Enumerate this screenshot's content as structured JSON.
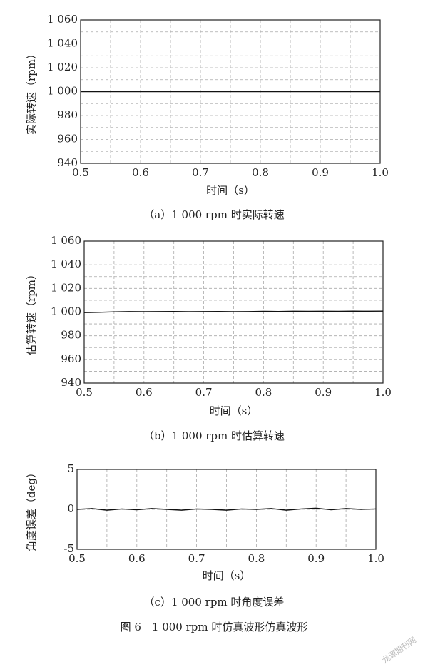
{
  "chart_data": [
    {
      "type": "line",
      "caption": "（a）1 000 rpm 时实际转速",
      "xlabel": "时间（s）",
      "ylabel": "实际转速（rpm）",
      "xlim": [
        0.5,
        1.0
      ],
      "ylim": [
        940,
        1060
      ],
      "xticks": [
        0.5,
        0.6,
        0.7,
        0.8,
        0.9,
        {
          "value": 1.0,
          "label": "1.0"
        }
      ],
      "yticks": [
        940,
        960,
        980,
        {
          "value": 1000,
          "label": "1 000"
        },
        {
          "value": 1020,
          "label": "1 020"
        },
        {
          "value": 1040,
          "label": "1 040"
        },
        {
          "value": 1060,
          "label": "1 060"
        }
      ],
      "xminorticks": [
        0.55,
        0.65,
        0.75,
        0.85,
        0.95
      ],
      "yminorticks": [
        950,
        970,
        990,
        1010,
        1030,
        1050
      ],
      "grid": true,
      "x": [
        0.5,
        0.55,
        0.6,
        0.65,
        0.7,
        0.75,
        0.8,
        0.85,
        0.9,
        0.95,
        1.0
      ],
      "series": [
        {
          "color": "#111111",
          "values": [
            1000,
            1000,
            1000,
            1000,
            1000,
            1000,
            1000,
            1000,
            1000,
            1000,
            1000
          ]
        }
      ]
    },
    {
      "type": "line",
      "caption": "（b）1 000 rpm 时估算转速",
      "xlabel": "时间（s）",
      "ylabel": "估算转速（rpm）",
      "xlim": [
        0.5,
        1.0
      ],
      "ylim": [
        940,
        1060
      ],
      "xticks": [
        0.5,
        0.6,
        0.7,
        0.8,
        0.9,
        {
          "value": 1.0,
          "label": "1.0"
        }
      ],
      "yticks": [
        940,
        960,
        980,
        {
          "value": 1000,
          "label": "1 000"
        },
        {
          "value": 1020,
          "label": "1 020"
        },
        {
          "value": 1040,
          "label": "1 040"
        },
        {
          "value": 1060,
          "label": "1 060"
        }
      ],
      "xminorticks": [
        0.55,
        0.65,
        0.75,
        0.85,
        0.95
      ],
      "yminorticks": [
        950,
        970,
        990,
        1010,
        1030,
        1050
      ],
      "grid": true,
      "x": [
        0.5,
        0.525,
        0.55,
        0.575,
        0.6,
        0.625,
        0.65,
        0.675,
        0.7,
        0.725,
        0.75,
        0.775,
        0.8,
        0.825,
        0.85,
        0.875,
        0.9,
        0.925,
        0.95,
        0.975,
        1.0
      ],
      "series": [
        {
          "color": "#111111",
          "values": [
            999.6,
            999.8,
            1000.2,
            1000.4,
            1000.3,
            1000.4,
            1000.5,
            1000.3,
            1000.4,
            1000.5,
            1000.3,
            1000.4,
            1000.6,
            1000.5,
            1000.7,
            1000.6,
            1000.7,
            1000.6,
            1000.8,
            1000.7,
            1000.8
          ]
        }
      ]
    },
    {
      "type": "line",
      "caption": "（c）1 000 rpm 时角度误差",
      "xlabel": "时间（s）",
      "ylabel": "角度误差（deg）",
      "xlim": [
        0.5,
        1.0
      ],
      "ylim": [
        -5,
        5
      ],
      "xticks": [
        0.5,
        0.6,
        0.7,
        0.8,
        0.9,
        {
          "value": 1.0,
          "label": "1.0"
        }
      ],
      "yticks": [
        -5,
        0,
        5
      ],
      "xminorticks": [
        0.55,
        0.65,
        0.75,
        0.85,
        0.95
      ],
      "yminorticks": [],
      "grid": true,
      "x": [
        0.5,
        0.525,
        0.55,
        0.575,
        0.6,
        0.625,
        0.65,
        0.675,
        0.7,
        0.725,
        0.75,
        0.775,
        0.8,
        0.825,
        0.85,
        0.875,
        0.9,
        0.925,
        0.95,
        0.975,
        1.0
      ],
      "series": [
        {
          "color": "#111111",
          "values": [
            0,
            0.1,
            -0.1,
            0.05,
            -0.05,
            0.1,
            0,
            -0.1,
            0.05,
            0,
            -0.1,
            0.05,
            0,
            0.1,
            -0.1,
            0.05,
            0.15,
            -0.05,
            0.1,
            0,
            0.05
          ]
        }
      ]
    }
  ],
  "figure_caption": "图 6　1 000 rpm 时仿真波形仿真波形",
  "watermark": "龙源期刊网"
}
